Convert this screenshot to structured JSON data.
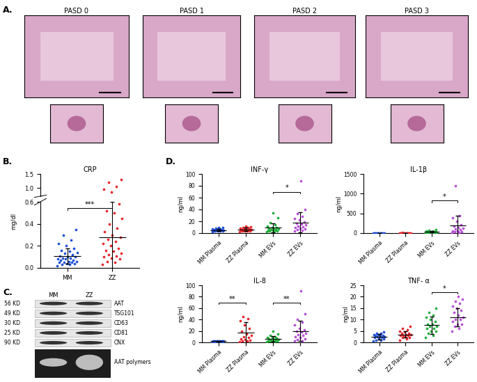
{
  "panel_labels": [
    "A.",
    "B.",
    "C.",
    "D."
  ],
  "histology": {
    "images": [
      "PASD 0",
      "PASD 1",
      "PASD 2",
      "PASD 3"
    ]
  },
  "chart_data": [
    {
      "type": "scatter",
      "title": "CRP",
      "y_label": "mg/dl",
      "categories": [
        "MM",
        "ZZ"
      ],
      "colors": [
        "#1f4fd6",
        "#e8262b"
      ],
      "values": [
        [
          0.02,
          0.03,
          0.03,
          0.04,
          0.04,
          0.05,
          0.05,
          0.05,
          0.06,
          0.06,
          0.07,
          0.07,
          0.08,
          0.08,
          0.09,
          0.09,
          0.1,
          0.1,
          0.11,
          0.12,
          0.13,
          0.14,
          0.15,
          0.16,
          0.18,
          0.2,
          0.22,
          0.25,
          0.3,
          0.35
        ],
        [
          0.03,
          0.05,
          0.06,
          0.08,
          0.09,
          0.1,
          0.11,
          0.12,
          0.13,
          0.15,
          0.16,
          0.18,
          0.2,
          0.22,
          0.24,
          0.26,
          0.28,
          0.3,
          0.33,
          0.36,
          0.4,
          0.45,
          0.5,
          0.52,
          0.58,
          0.85,
          0.95,
          1.05,
          1.2,
          1.3
        ]
      ],
      "mean": [
        0.11,
        0.28
      ],
      "sd": [
        0.07,
        0.32
      ],
      "ylim_segments": [
        [
          0,
          0.6
        ],
        [
          0.7,
          1.5
        ]
      ],
      "yticks": [
        {
          "value": 0,
          "label": "0.0"
        },
        0.2,
        0.4,
        0.6,
        {
          "value": 1,
          "label": "1.0"
        },
        1.5
      ],
      "significance": [
        {
          "between": [
            "MM",
            "ZZ"
          ],
          "label": "***"
        }
      ]
    },
    {
      "type": "scatter",
      "title": "INF-γ",
      "y_label": "ng/ml",
      "categories": [
        "MM Plasma",
        "ZZ Plasma",
        "MM EVs",
        "ZZ EVs"
      ],
      "colors": [
        "#1f4fd6",
        "#e8262b",
        "#1fae3a",
        "#b84fd8"
      ],
      "values": [
        [
          2,
          3,
          3,
          4,
          4,
          4,
          5,
          5,
          5,
          5,
          6,
          6,
          6,
          7,
          7,
          8,
          9,
          10
        ],
        [
          2,
          3,
          3,
          4,
          4,
          5,
          5,
          5,
          6,
          6,
          6,
          7,
          7,
          8,
          9,
          10,
          11,
          12
        ],
        [
          2,
          3,
          4,
          4,
          5,
          5,
          6,
          6,
          7,
          7,
          8,
          9,
          10,
          12,
          14,
          18,
          26,
          34
        ],
        [
          3,
          5,
          6,
          7,
          8,
          10,
          11,
          12,
          14,
          15,
          17,
          19,
          22,
          25,
          28,
          33,
          40,
          88
        ]
      ],
      "mean": [
        5,
        6,
        9,
        18
      ],
      "sd": [
        2,
        3,
        8,
        17
      ],
      "ylim": [
        0,
        100
      ],
      "yticks": [
        0,
        20,
        40,
        60,
        80,
        100
      ],
      "significance": [
        {
          "between": [
            "MM EVs",
            "ZZ EVs"
          ],
          "label": "*"
        }
      ]
    },
    {
      "type": "scatter",
      "title": "IL-1β",
      "y_label": "ng/ml",
      "categories": [
        "MM Plasma",
        "ZZ Plasma",
        "MM EVs",
        "ZZ EVs"
      ],
      "colors": [
        "#1f4fd6",
        "#e8262b",
        "#1fae3a",
        "#b84fd8"
      ],
      "values": [
        [
          0,
          1,
          1,
          1,
          2,
          2,
          2,
          2,
          2,
          3,
          3,
          3,
          3,
          4,
          4,
          5
        ],
        [
          0,
          1,
          1,
          2,
          2,
          2,
          3,
          3,
          3,
          4,
          4,
          5,
          5,
          6,
          8,
          10
        ],
        [
          5,
          8,
          10,
          12,
          15,
          18,
          20,
          22,
          25,
          28,
          30,
          35,
          40,
          45,
          55,
          65,
          80
        ],
        [
          10,
          20,
          30,
          40,
          50,
          60,
          80,
          100,
          120,
          150,
          180,
          220,
          300,
          380,
          450,
          1200
        ]
      ],
      "mean": [
        2,
        3,
        30,
        200
      ],
      "sd": [
        1,
        2,
        20,
        250
      ],
      "ylim": [
        0,
        1500
      ],
      "yticks": [
        0,
        500,
        1000,
        1500
      ],
      "significance": [
        {
          "between": [
            "MM EVs",
            "ZZ EVs"
          ],
          "label": "*"
        }
      ]
    },
    {
      "type": "scatter",
      "title": "IL-8",
      "y_label": "ng/ml",
      "categories": [
        "MM Plasma",
        "ZZ Plasma",
        "MM EVs",
        "ZZ EVs"
      ],
      "colors": [
        "#1f4fd6",
        "#e8262b",
        "#1fae3a",
        "#b84fd8"
      ],
      "values": [
        [
          1,
          1,
          1.5,
          1.5,
          2,
          2,
          2,
          2,
          2,
          2.5,
          2.5,
          3,
          3
        ],
        [
          1,
          2,
          3,
          4,
          5,
          6,
          8,
          10,
          12,
          15,
          20,
          25,
          30,
          38,
          42,
          45
        ],
        [
          1,
          1,
          2,
          2,
          3,
          3,
          4,
          4,
          5,
          5,
          6,
          7,
          8,
          9,
          10,
          12,
          15,
          20
        ],
        [
          2,
          3,
          5,
          6,
          8,
          10,
          12,
          14,
          16,
          18,
          20,
          22,
          25,
          30,
          35,
          40,
          50,
          90
        ]
      ],
      "mean": [
        2,
        17,
        6,
        20
      ],
      "sd": [
        0.5,
        18,
        5,
        18
      ],
      "ylim": [
        0,
        100
      ],
      "yticks": [
        0,
        20,
        40,
        60,
        80,
        100
      ],
      "significance": [
        {
          "between": [
            "MM Plasma",
            "ZZ Plasma"
          ],
          "label": "**"
        },
        {
          "between": [
            "MM EVs",
            "ZZ EVs"
          ],
          "label": "**"
        }
      ]
    },
    {
      "type": "scatter",
      "title": "TNF- α",
      "y_label": "ng/ml",
      "categories": [
        "MM Plasma",
        "ZZ Plasma",
        "MM EVs",
        "ZZ EVs"
      ],
      "colors": [
        "#1f4fd6",
        "#e8262b",
        "#1fae3a",
        "#b84fd8"
      ],
      "values": [
        [
          0.5,
          1,
          1,
          1.5,
          1.5,
          2,
          2,
          2.5,
          2.5,
          3,
          3,
          3,
          3.5,
          3.5,
          4,
          4,
          4.5
        ],
        [
          1,
          1.5,
          2,
          2,
          2.5,
          3,
          3,
          3,
          3.5,
          3.5,
          4,
          4,
          4.5,
          5,
          5.5,
          6,
          7
        ],
        [
          2,
          3,
          4,
          5,
          5,
          6,
          6,
          7,
          7,
          8,
          8,
          9,
          10,
          11,
          12,
          13,
          15
        ],
        [
          5,
          6,
          7,
          8,
          8,
          9,
          10,
          10,
          11,
          12,
          13,
          14,
          15,
          16,
          17,
          18,
          19,
          20
        ]
      ],
      "mean": [
        2.5,
        3.5,
        7.5,
        11
      ],
      "sd": [
        1.2,
        1.5,
        3.8,
        4
      ],
      "ylim": [
        0,
        25
      ],
      "yticks": [
        0,
        5,
        10,
        15,
        20,
        25
      ],
      "significance": [
        {
          "between": [
            "MM EVs",
            "ZZ EVs"
          ],
          "label": "*"
        }
      ]
    }
  ],
  "blot": {
    "lanes": [
      "MM",
      "ZZ"
    ],
    "rows": [
      {
        "size": "56 KD",
        "protein": "AAT"
      },
      {
        "size": "49 KD",
        "protein": "TSG101"
      },
      {
        "size": "30 KD",
        "protein": "CD63"
      },
      {
        "size": "25 KD",
        "protein": "CD81"
      },
      {
        "size": "90 KD",
        "protein": "CNX"
      }
    ],
    "native_gel": "AAT polymers"
  }
}
